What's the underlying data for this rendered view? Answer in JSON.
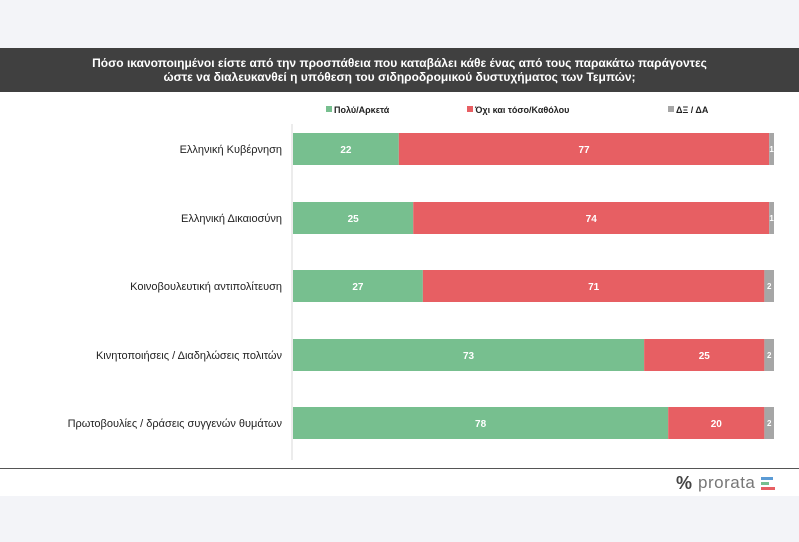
{
  "title": {
    "line1": "Πόσο ικανοποιημένοι είστε από την προσπάθεια που καταβάλει κάθε ένας από τους παρακάτω παράγοντες",
    "line2": "ώστε να διαλευκανθεί η υπόθεση του σιδηροδρομικού δυστυχήματος των Τεμπών;"
  },
  "logo": {
    "symbol": "%",
    "word": "prorata",
    "icon": "bar-lines-icon"
  },
  "colors": {
    "green": "#77bf8f",
    "red": "#e75f63",
    "gray": "#a6a6a6"
  },
  "chart_data": {
    "type": "bar",
    "orientation": "horizontal",
    "stacked": true,
    "categories": [
      "Ελληνική Κυβέρνηση",
      "Ελληνική Δικαιοσύνη",
      "Κοινοβουλευτική αντιπολίτευση",
      "Κινητοποιήσεις / Διαδηλώσεις πολιτών",
      "Πρωτοβουλίες / δράσεις συγγενών θυμάτων"
    ],
    "series": [
      {
        "name": "Πολύ/Αρκετά",
        "color": "#77bf8f",
        "values": [
          22,
          25,
          27,
          73,
          78
        ]
      },
      {
        "name": "Όχι και τόσο/Καθόλου",
        "color": "#e75f63",
        "values": [
          77,
          74,
          71,
          25,
          20
        ]
      },
      {
        "name": "ΔΞ / ΔΑ",
        "color": "#a6a6a6",
        "values": [
          1,
          1,
          2,
          2,
          2
        ]
      }
    ],
    "legend_position": "top",
    "xlim": [
      0,
      100
    ],
    "grid": false
  }
}
